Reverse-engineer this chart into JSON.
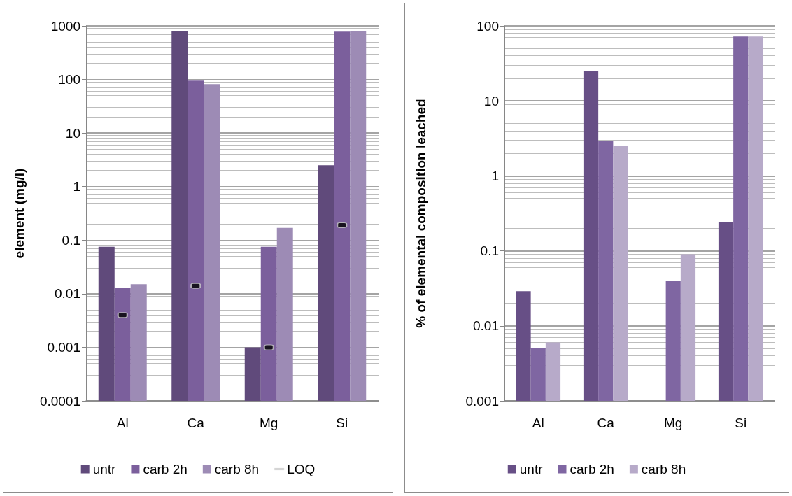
{
  "chart_data": [
    {
      "type": "bar",
      "ylabel": "element (mg/l)",
      "categories": [
        "Al",
        "Ca",
        "Mg",
        "Si"
      ],
      "log": "y",
      "ylim": [
        0.0001,
        1000
      ],
      "yticks": [
        0.0001,
        0.001,
        0.01,
        0.1,
        1,
        10,
        100,
        1000
      ],
      "grid": true,
      "legend": "bottom",
      "series": [
        {
          "name": "untr",
          "color": "#604a7b",
          "values": [
            0.075,
            800,
            0.001,
            2.5
          ]
        },
        {
          "name": "carb 2h",
          "color": "#7b5f9c",
          "values": [
            0.013,
            95,
            0.075,
            780
          ]
        },
        {
          "name": "carb 8h",
          "color": "#9d8bb5",
          "values": [
            0.015,
            82,
            0.17,
            800
          ]
        },
        {
          "name": "LOQ",
          "type": "scatter",
          "color": "#000000",
          "x": [
            "Al",
            "Ca",
            "Mg",
            "Si"
          ],
          "values": [
            0.004,
            0.014,
            0.001,
            0.19
          ]
        }
      ]
    },
    {
      "type": "bar",
      "ylabel": "% of elemental composition leached",
      "categories": [
        "Al",
        "Ca",
        "Mg",
        "Si"
      ],
      "log": "y",
      "ylim": [
        0.001,
        100
      ],
      "yticks": [
        0.001,
        0.01,
        0.1,
        1,
        10,
        100
      ],
      "grid": true,
      "legend": "bottom",
      "series": [
        {
          "name": "untr",
          "color": "#674f86",
          "values": [
            0.029,
            25,
            null,
            0.24
          ]
        },
        {
          "name": "carb 2h",
          "color": "#7f66a2",
          "values": [
            0.005,
            2.9,
            0.04,
            72
          ]
        },
        {
          "name": "carb 8h",
          "color": "#b7aac9",
          "values": [
            0.006,
            2.5,
            0.09,
            72
          ]
        }
      ]
    }
  ]
}
